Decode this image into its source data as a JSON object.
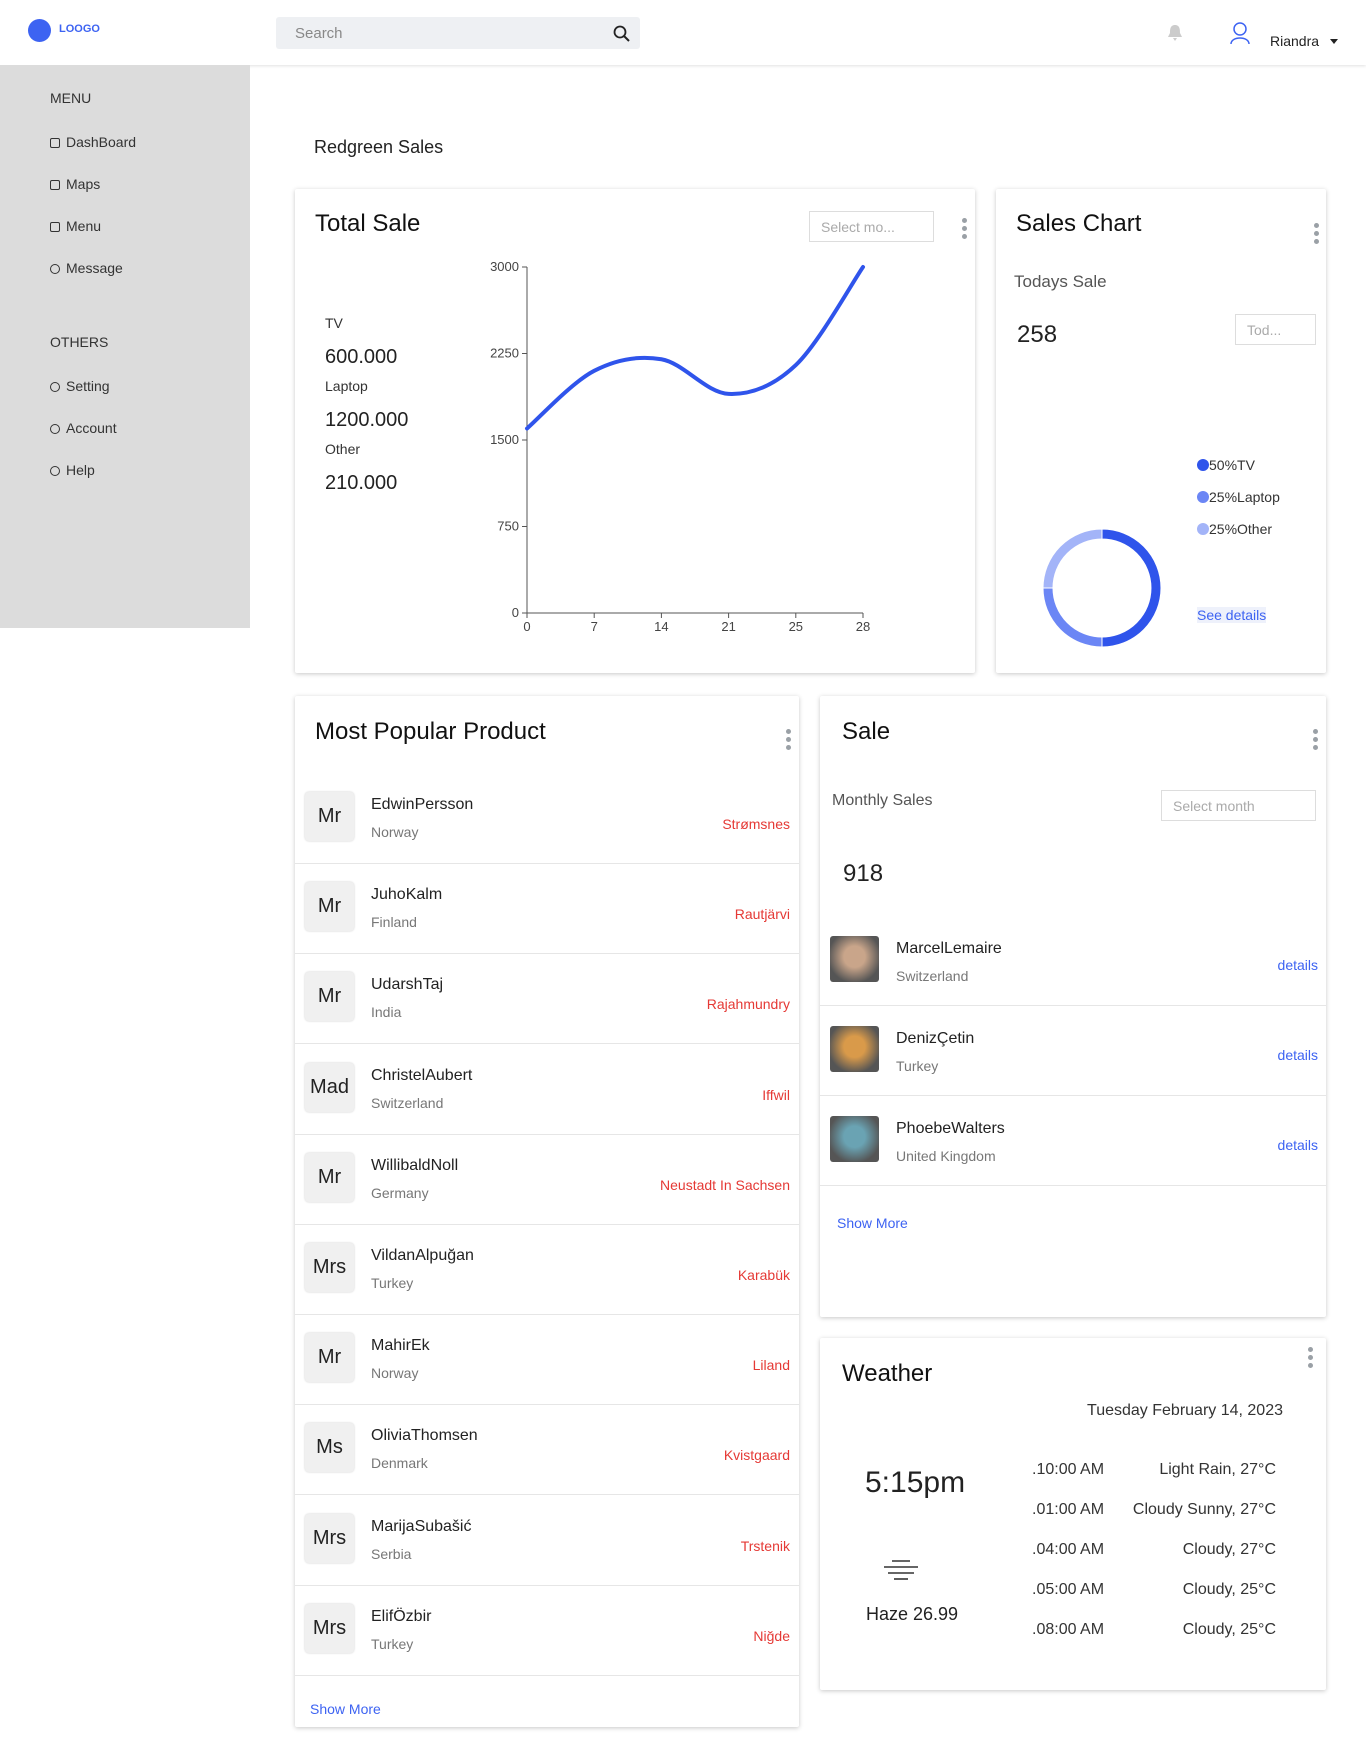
{
  "header": {
    "logo": "LOOGO",
    "search": "Search",
    "user": "Riandra"
  },
  "sidebar": {
    "sections": [
      {
        "title": "MENU",
        "items": [
          "DashBoard",
          "Maps",
          "Menu",
          "Message"
        ]
      },
      {
        "title": "OTHERS",
        "items": [
          "Setting",
          "Account",
          "Help"
        ]
      }
    ]
  },
  "page_title": "Redgreen Sales",
  "total_sale": {
    "title": "Total Sale",
    "date_picker": "Select mo...",
    "stats": [
      {
        "label": "TV",
        "value": "600.000"
      },
      {
        "label": "Laptop",
        "value": "1200.000"
      },
      {
        "label": "Other",
        "value": "210.000"
      }
    ]
  },
  "sales_chart": {
    "title": "Sales Chart",
    "subtitle": "Todays Sale",
    "value": "258",
    "dropdown": "Tod...",
    "link": "See details"
  },
  "chart_data": [
    {
      "type": "line",
      "categories": [
        "0",
        "7",
        "14",
        "21",
        "25",
        "28"
      ],
      "series": [
        {
          "color": "#2f54eb",
          "values": [
            1600,
            2100,
            2200,
            1900,
            2150,
            3000
          ]
        }
      ],
      "ylim": [
        0,
        3000
      ],
      "yticks": [
        0,
        750,
        1500,
        2250,
        3000
      ]
    },
    {
      "type": "pie",
      "categories": [
        "TV",
        "Laptop",
        "Other"
      ],
      "values": [
        50,
        25,
        25
      ],
      "value_labels": [
        "50%",
        "25%",
        "25%"
      ],
      "colors": [
        "#2f54eb",
        "#6b86f5",
        "#a3b4f8"
      ]
    }
  ],
  "popular": {
    "title": "Most Popular Product",
    "items": [
      {
        "title": "Mr",
        "name": "EdwinPersson",
        "country": "Norway",
        "city": "Strømsnes"
      },
      {
        "title": "Mr",
        "name": "JuhoKalm",
        "country": "Finland",
        "city": "Rautjärvi"
      },
      {
        "title": "Mr",
        "name": "UdarshTaj",
        "country": "India",
        "city": "Rajahmundry"
      },
      {
        "title": "Mad",
        "name": "ChristelAubert",
        "country": "Switzerland",
        "city": "Iffwil"
      },
      {
        "title": "Mr",
        "name": "WillibaldNoll",
        "country": "Germany",
        "city": "Neustadt In Sachsen"
      },
      {
        "title": "Mrs",
        "name": "VildanAlpuğan",
        "country": "Turkey",
        "city": "Karabük"
      },
      {
        "title": "Mr",
        "name": "MahirEk",
        "country": "Norway",
        "city": "Liland"
      },
      {
        "title": "Ms",
        "name": "OliviaThomsen",
        "country": "Denmark",
        "city": "Kvistgaard"
      },
      {
        "title": "Mrs",
        "name": "MarijaSubašić",
        "country": "Serbia",
        "city": "Trstenik"
      },
      {
        "title": "Mrs",
        "name": "ElifÖzbir",
        "country": "Turkey",
        "city": "Niğde"
      }
    ],
    "more": "Show More"
  },
  "sale": {
    "title": "Sale",
    "subtitle": "Monthly Sales",
    "date_picker": "Select month",
    "value": "918",
    "items": [
      {
        "name": "MarcelLemaire",
        "country": "Switzerland",
        "link": "details"
      },
      {
        "name": "DenizÇetin",
        "country": "Turkey",
        "link": "details"
      },
      {
        "name": "PhoebeWalters",
        "country": "United Kingdom",
        "link": "details"
      }
    ],
    "more": "Show More"
  },
  "weather": {
    "title": "Weather",
    "date": "Tuesday February 14, 2023",
    "time": "5:15pm",
    "current": "Haze 26.99",
    "forecast": [
      {
        "time": ".10:00 AM",
        "condition": "Light Rain, 27°C"
      },
      {
        "time": ".01:00 AM",
        "condition": "Cloudy Sunny, 27°C"
      },
      {
        "time": ".04:00 AM",
        "condition": "Cloudy, 27°C"
      },
      {
        "time": ".05:00 AM",
        "condition": "Cloudy, 25°C"
      },
      {
        "time": ".08:00 AM",
        "condition": "Cloudy, 25°C"
      }
    ]
  }
}
